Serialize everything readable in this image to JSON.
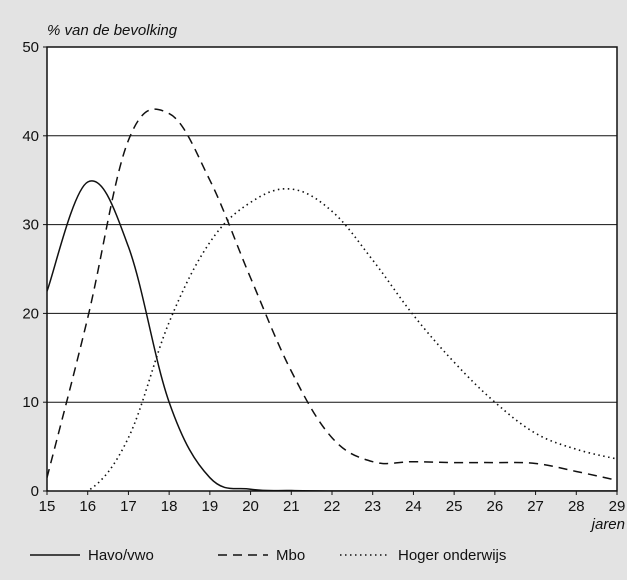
{
  "chart_data": {
    "type": "line",
    "ylabel": "% van de bevolking",
    "xlabel": "jaren",
    "xlim": [
      15,
      29
    ],
    "ylim": [
      0,
      50
    ],
    "x_ticks": [
      15,
      16,
      17,
      18,
      19,
      20,
      21,
      22,
      23,
      24,
      25,
      26,
      27,
      28,
      29
    ],
    "y_ticks": [
      0,
      10,
      20,
      30,
      40,
      50
    ],
    "grid": "horizontal",
    "legend_position": "bottom",
    "series": [
      {
        "name": "Havo/vwo",
        "style": "solid",
        "x": [
          15,
          16,
          17,
          18,
          19,
          20,
          21,
          22,
          23,
          24,
          25,
          26,
          27,
          28,
          29
        ],
        "values": [
          22.5,
          34.8,
          27.5,
          10.0,
          1.5,
          0.2,
          0.05,
          0,
          0,
          0,
          0,
          0,
          0,
          0,
          0
        ]
      },
      {
        "name": "Mbo",
        "style": "dashed",
        "x": [
          15,
          16,
          17,
          18,
          19,
          20,
          21,
          22,
          23,
          24,
          25,
          26,
          27,
          28,
          29
        ],
        "values": [
          1.5,
          19.5,
          39.5,
          42.5,
          35.0,
          24.0,
          13.5,
          6.0,
          3.3,
          3.3,
          3.2,
          3.2,
          3.1,
          2.2,
          1.2
        ]
      },
      {
        "name": "Hoger onderwijs",
        "style": "dotted",
        "x": [
          15,
          16,
          17,
          18,
          19,
          20,
          21,
          22,
          23,
          24,
          25,
          26,
          27,
          28,
          29
        ],
        "values": [
          0,
          0,
          6.0,
          19.0,
          28.0,
          32.5,
          34.0,
          31.5,
          26.0,
          19.8,
          14.5,
          10.0,
          6.5,
          4.7,
          3.6
        ]
      }
    ],
    "colors": {
      "background": "#e3e3e3",
      "plot_background": "#ffffff",
      "line": "#111111"
    }
  }
}
